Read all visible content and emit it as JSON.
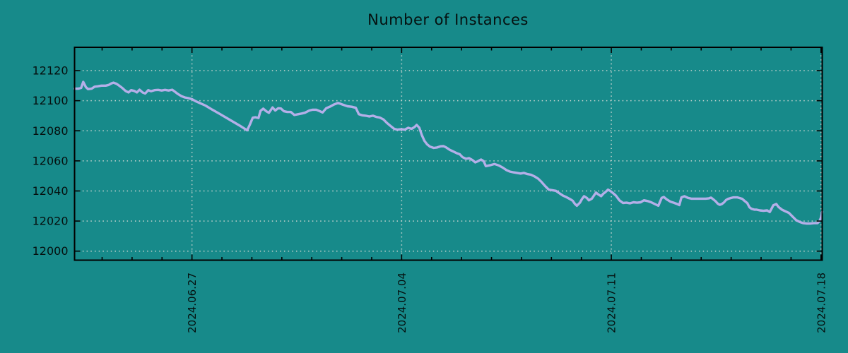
{
  "chart_data": {
    "type": "line",
    "title": "Number of Instances",
    "subtitle": "",
    "legend": null,
    "grid": true,
    "colors": {
      "background": "#178a8a",
      "line": "#b4afe8",
      "grid": "#d2d8d4",
      "axis": "#000000",
      "text": "#05100f"
    },
    "x_axis": {
      "unit": "days since 2024-06-23 00:00",
      "range": [
        0.08,
        25.04
      ],
      "major_ticks": [
        {
          "t": 4,
          "label": "2024.06.27"
        },
        {
          "t": 11,
          "label": "2024.07.04"
        },
        {
          "t": 18,
          "label": "2024.07.11"
        },
        {
          "t": 25,
          "label": "2024.07.18"
        }
      ],
      "minor_tick_interval_days": 1,
      "label_rotation_deg": -90
    },
    "y_axis": {
      "range": [
        11994,
        12135.5
      ],
      "ticks": [
        12000,
        12020,
        12040,
        12060,
        12080,
        12100,
        12120
      ]
    },
    "series": [
      {
        "name": "instances",
        "points": [
          [
            0.08,
            12108
          ],
          [
            0.2,
            12108
          ],
          [
            0.3,
            12108.5
          ],
          [
            0.37,
            12112.5
          ],
          [
            0.46,
            12109
          ],
          [
            0.53,
            12107.7
          ],
          [
            0.65,
            12108
          ],
          [
            0.75,
            12109.3
          ],
          [
            0.86,
            12109.6
          ],
          [
            0.98,
            12110
          ],
          [
            1.12,
            12110
          ],
          [
            1.22,
            12110.5
          ],
          [
            1.31,
            12111.5
          ],
          [
            1.38,
            12112
          ],
          [
            1.48,
            12111.3
          ],
          [
            1.57,
            12110
          ],
          [
            1.67,
            12108.5
          ],
          [
            1.78,
            12106.5
          ],
          [
            1.88,
            12105.5
          ],
          [
            1.97,
            12107
          ],
          [
            2.07,
            12106.5
          ],
          [
            2.16,
            12105.5
          ],
          [
            2.25,
            12107.3
          ],
          [
            2.35,
            12105.5
          ],
          [
            2.44,
            12104.8
          ],
          [
            2.54,
            12107
          ],
          [
            2.63,
            12106.3
          ],
          [
            2.75,
            12107
          ],
          [
            2.87,
            12107.2
          ],
          [
            2.99,
            12106.8
          ],
          [
            3.1,
            12107.2
          ],
          [
            3.22,
            12106.8
          ],
          [
            3.34,
            12107.3
          ],
          [
            3.43,
            12106
          ],
          [
            3.53,
            12104.5
          ],
          [
            3.65,
            12103
          ],
          [
            3.76,
            12102.2
          ],
          [
            3.88,
            12101.7
          ],
          [
            4,
            12101
          ],
          [
            4.14,
            12099.5
          ],
          [
            4.28,
            12098.3
          ],
          [
            4.45,
            12096.8
          ],
          [
            4.68,
            12094
          ],
          [
            4.92,
            12091.3
          ],
          [
            5.16,
            12088.5
          ],
          [
            5.39,
            12085.8
          ],
          [
            5.63,
            12083
          ],
          [
            5.84,
            12080.3
          ],
          [
            5.93,
            12084
          ],
          [
            6.03,
            12088.7
          ],
          [
            6.12,
            12089
          ],
          [
            6.22,
            12088.5
          ],
          [
            6.29,
            12093.3
          ],
          [
            6.38,
            12094.7
          ],
          [
            6.48,
            12093
          ],
          [
            6.57,
            12092
          ],
          [
            6.69,
            12095.5
          ],
          [
            6.78,
            12093.5
          ],
          [
            6.88,
            12095
          ],
          [
            6.97,
            12094.8
          ],
          [
            7.07,
            12093
          ],
          [
            7.18,
            12092.5
          ],
          [
            7.3,
            12092.5
          ],
          [
            7.42,
            12090.5
          ],
          [
            7.54,
            12091
          ],
          [
            7.66,
            12091.5
          ],
          [
            7.77,
            12092
          ],
          [
            7.92,
            12093.5
          ],
          [
            8.03,
            12094
          ],
          [
            8.15,
            12094
          ],
          [
            8.27,
            12093
          ],
          [
            8.36,
            12092.2
          ],
          [
            8.48,
            12095
          ],
          [
            8.6,
            12096
          ],
          [
            8.74,
            12097.5
          ],
          [
            8.88,
            12098.5
          ],
          [
            9.02,
            12097.5
          ],
          [
            9.19,
            12096.3
          ],
          [
            9.33,
            12096
          ],
          [
            9.47,
            12095.3
          ],
          [
            9.57,
            12091
          ],
          [
            9.68,
            12090.3
          ],
          [
            9.8,
            12090
          ],
          [
            9.92,
            12089.5
          ],
          [
            10.04,
            12090
          ],
          [
            10.16,
            12089.2
          ],
          [
            10.27,
            12088.8
          ],
          [
            10.39,
            12087.6
          ],
          [
            10.51,
            12085.2
          ],
          [
            10.63,
            12083.2
          ],
          [
            10.75,
            12081.3
          ],
          [
            10.86,
            12080.8
          ],
          [
            10.98,
            12081
          ],
          [
            11.1,
            12080.8
          ],
          [
            11.22,
            12082
          ],
          [
            11.33,
            12081.3
          ],
          [
            11.43,
            12082.5
          ],
          [
            11.5,
            12083.9
          ],
          [
            11.59,
            12082
          ],
          [
            11.67,
            12077.3
          ],
          [
            11.76,
            12073.3
          ],
          [
            11.85,
            12071
          ],
          [
            11.95,
            12069.4
          ],
          [
            12.07,
            12068.6
          ],
          [
            12.18,
            12068.9
          ],
          [
            12.3,
            12069.7
          ],
          [
            12.4,
            12069.8
          ],
          [
            12.49,
            12068.9
          ],
          [
            12.61,
            12067.3
          ],
          [
            12.73,
            12066.2
          ],
          [
            12.84,
            12065.1
          ],
          [
            12.94,
            12064.4
          ],
          [
            13.03,
            12062.5
          ],
          [
            13.15,
            12061.4
          ],
          [
            13.25,
            12061.8
          ],
          [
            13.36,
            12060.6
          ],
          [
            13.46,
            12059
          ],
          [
            13.55,
            12059.8
          ],
          [
            13.65,
            12060.9
          ],
          [
            13.74,
            12059.8
          ],
          [
            13.81,
            12056.5
          ],
          [
            13.95,
            12057.1
          ],
          [
            14.1,
            12057.9
          ],
          [
            14.24,
            12057
          ],
          [
            14.38,
            12055.5
          ],
          [
            14.5,
            12053.9
          ],
          [
            14.61,
            12052.9
          ],
          [
            14.73,
            12052.4
          ],
          [
            14.85,
            12052
          ],
          [
            14.97,
            12051.6
          ],
          [
            15.08,
            12052
          ],
          [
            15.2,
            12051.2
          ],
          [
            15.32,
            12050.8
          ],
          [
            15.44,
            12049.6
          ],
          [
            15.56,
            12048.1
          ],
          [
            15.67,
            12046
          ],
          [
            15.79,
            12043.3
          ],
          [
            15.91,
            12040.9
          ],
          [
            16.03,
            12040.5
          ],
          [
            16.15,
            12040.1
          ],
          [
            16.26,
            12038.6
          ],
          [
            16.38,
            12037
          ],
          [
            16.5,
            12035.9
          ],
          [
            16.62,
            12034.6
          ],
          [
            16.71,
            12033.5
          ],
          [
            16.78,
            12031.5
          ],
          [
            16.85,
            12030.2
          ],
          [
            16.95,
            12032.2
          ],
          [
            17.02,
            12034.6
          ],
          [
            17.09,
            12036.5
          ],
          [
            17.18,
            12035.4
          ],
          [
            17.25,
            12033.8
          ],
          [
            17.35,
            12034.9
          ],
          [
            17.42,
            12037
          ],
          [
            17.49,
            12038.9
          ],
          [
            17.56,
            12037.8
          ],
          [
            17.66,
            12036.5
          ],
          [
            17.73,
            12038.1
          ],
          [
            17.8,
            12039.2
          ],
          [
            17.89,
            12040.9
          ],
          [
            17.96,
            12040.1
          ],
          [
            18.03,
            12039
          ],
          [
            18.15,
            12037
          ],
          [
            18.27,
            12033.8
          ],
          [
            18.39,
            12032
          ],
          [
            18.51,
            12032.2
          ],
          [
            18.62,
            12031.8
          ],
          [
            18.74,
            12032.5
          ],
          [
            18.86,
            12032.2
          ],
          [
            18.98,
            12032.5
          ],
          [
            19.09,
            12033.8
          ],
          [
            19.21,
            12033.3
          ],
          [
            19.33,
            12032.5
          ],
          [
            19.45,
            12031.3
          ],
          [
            19.57,
            12030.2
          ],
          [
            19.68,
            12035.4
          ],
          [
            19.75,
            12036
          ],
          [
            19.85,
            12034.4
          ],
          [
            19.97,
            12032.9
          ],
          [
            20.08,
            12032.2
          ],
          [
            20.2,
            12031.3
          ],
          [
            20.27,
            12030.6
          ],
          [
            20.34,
            12035.7
          ],
          [
            20.44,
            12036.5
          ],
          [
            20.56,
            12035.4
          ],
          [
            20.67,
            12034.9
          ],
          [
            20.79,
            12034.9
          ],
          [
            20.91,
            12034.9
          ],
          [
            21.03,
            12034.9
          ],
          [
            21.15,
            12034.9
          ],
          [
            21.26,
            12035.1
          ],
          [
            21.33,
            12035.6
          ],
          [
            21.4,
            12034.5
          ],
          [
            21.48,
            12033.2
          ],
          [
            21.55,
            12031.6
          ],
          [
            21.62,
            12030.8
          ],
          [
            21.69,
            12031.3
          ],
          [
            21.76,
            12032.4
          ],
          [
            21.83,
            12034
          ],
          [
            21.9,
            12034.8
          ],
          [
            21.97,
            12035.2
          ],
          [
            22.07,
            12035.7
          ],
          [
            22.14,
            12035.7
          ],
          [
            22.21,
            12035.7
          ],
          [
            22.3,
            12035.2
          ],
          [
            22.37,
            12034.8
          ],
          [
            22.44,
            12033.5
          ],
          [
            22.54,
            12031.9
          ],
          [
            22.61,
            12029.2
          ],
          [
            22.68,
            12028.1
          ],
          [
            22.77,
            12027.6
          ],
          [
            22.84,
            12027.6
          ],
          [
            22.96,
            12027.1
          ],
          [
            23.08,
            12026.8
          ],
          [
            23.2,
            12027.1
          ],
          [
            23.29,
            12026
          ],
          [
            23.41,
            12030.5
          ],
          [
            23.51,
            12031.3
          ],
          [
            23.58,
            12029.4
          ],
          [
            23.7,
            12027.5
          ],
          [
            23.81,
            12026.5
          ],
          [
            23.93,
            12025.4
          ],
          [
            24.05,
            12023
          ],
          [
            24.17,
            12020.6
          ],
          [
            24.29,
            12019.4
          ],
          [
            24.41,
            12018.6
          ],
          [
            24.53,
            12018.3
          ],
          [
            24.64,
            12018.3
          ],
          [
            24.76,
            12018.6
          ],
          [
            24.88,
            12018.6
          ],
          [
            24.95,
            12019.9
          ],
          [
            25,
            12022.3
          ],
          [
            25.04,
            12026.2
          ]
        ]
      }
    ]
  }
}
